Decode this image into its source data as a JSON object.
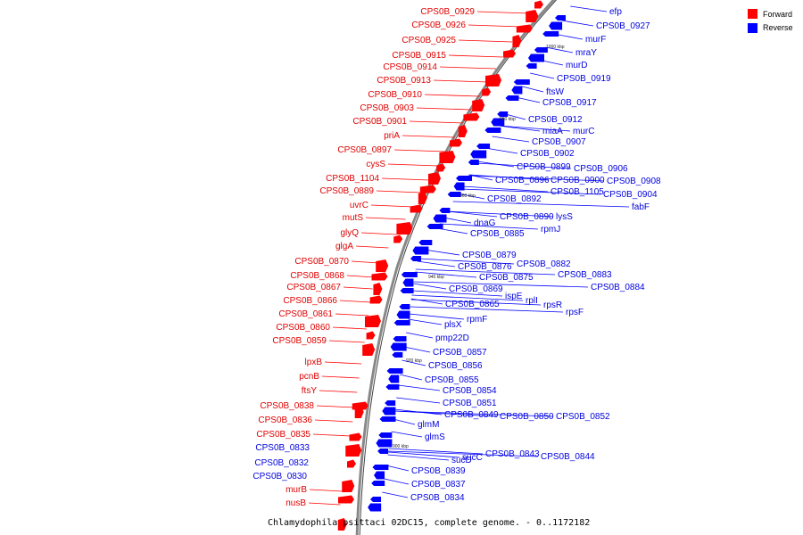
{
  "caption": "Chlamydophila psittaci 02DC15, complete genome. - 0..1172182",
  "legend": [
    {
      "label": "Forward",
      "color": "#ff0000"
    },
    {
      "label": "Reverse",
      "color": "#0000ff"
    }
  ],
  "colors": {
    "forward": "#ff0000",
    "reverse": "#0000ff",
    "forward_text": "#e00000",
    "reverse_text": "#0000e0",
    "backbone": "#888888"
  },
  "ticks": [
    "1000 kbp",
    "980 kbp",
    "960 kbp",
    "940 kbp",
    "920 kbp",
    "900 kbp"
  ],
  "forward_labels": [
    "CPS0B_0929",
    "CPS0B_0926",
    "CPS0B_0925",
    "CPS0B_0915",
    "CPS0B_0914",
    "CPS0B_0913",
    "CPS0B_0910",
    "CPS0B_0903",
    "CPS0B_0901",
    "priA",
    "CPS0B_0897",
    "cysS",
    "CPS0B_1104",
    "CPS0B_0889",
    "uvrC",
    "mutS",
    "glyQ",
    "glgA",
    "CPS0B_0870",
    "CPS0B_0868",
    "CPS0B_0867",
    "CPS0B_0866",
    "CPS0B_0861",
    "CPS0B_0860",
    "CPS0B_0859",
    "lpxB",
    "pcnB",
    "ftsY",
    "CPS0B_0838",
    "CPS0B_0836",
    "CPS0B_0835",
    "murB",
    "nusB"
  ],
  "reverse_left_labels": [
    "CPS0B_0833",
    "CPS0B_0832",
    "CPS0B_0830"
  ],
  "reverse_labels": [
    "efp",
    "CPS0B_0927",
    "murF",
    "mraY",
    "murD",
    "CPS0B_0919",
    "ftsW",
    "CPS0B_0917",
    "CPS0B_0912",
    "miaA",
    "murC",
    "CPS0B_0907",
    "CPS0B_0902",
    "CPS0B_0899",
    "CPS0B_0906",
    "CPS0B_0896",
    "CPS0B_0900",
    "CPS0B_0908",
    "CPS0B_1105",
    "CPS0B_0904",
    "fabF",
    "CPS0B_0892",
    "lysS",
    "CPS0B_0890",
    "dnaG",
    "rpmJ",
    "CPS0B_0885",
    "CPS0B_0879",
    "CPS0B_0882",
    "CPS0B_0876",
    "CPS0B_0883",
    "CPS0B_0875",
    "CPS0B_0884",
    "CPS0B_0869",
    "ispE",
    "rplI",
    "rpsR",
    "CPS0B_0865",
    "rpsF",
    "rpmF",
    "plsX",
    "pmp22D",
    "CPS0B_0857",
    "CPS0B_0856",
    "CPS0B_0855",
    "CPS0B_0854",
    "CPS0B_0851",
    "CPS0B_0849",
    "CPS0B_0850",
    "CPS0B_0852",
    "glmM",
    "glmS",
    "CPS0B_0843",
    "CPS0B_0844",
    "sucD",
    "sucC",
    "CPS0B_0839",
    "CPS0B_0837",
    "CPS0B_0834"
  ]
}
